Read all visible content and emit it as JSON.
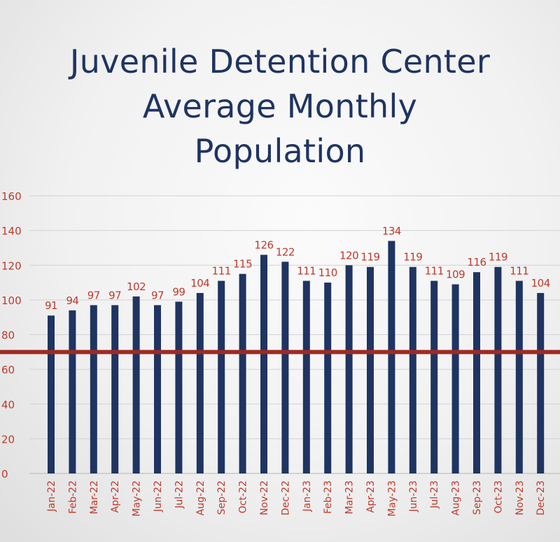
{
  "chart_data": {
    "type": "bar",
    "title_lines": [
      "Juvenile Detention Center",
      "Average Monthly",
      "Population"
    ],
    "categories": [
      "Jan-22",
      "Feb-22",
      "Mar-22",
      "Apr-22",
      "May-22",
      "Jun-22",
      "Jul-22",
      "Aug-22",
      "Sep-22",
      "Oct-22",
      "Nov-22",
      "Dec-22",
      "Jan-23",
      "Feb-23",
      "Mar-23",
      "Apr-23",
      "May-23",
      "Jun-23",
      "Jul-23",
      "Aug-23",
      "Sep-23",
      "Oct-23",
      "Nov-23",
      "Dec-23"
    ],
    "values": [
      91,
      94,
      97,
      97,
      102,
      97,
      99,
      104,
      111,
      115,
      126,
      122,
      111,
      110,
      120,
      119,
      134,
      119,
      111,
      109,
      116,
      119,
      111,
      104
    ],
    "ylim": [
      0,
      160
    ],
    "yticks": [
      "0",
      "20",
      "40",
      "60",
      "80",
      "100",
      "120",
      "140",
      "160"
    ],
    "reference_line": 70,
    "grid": true,
    "colors": {
      "bar": "#1f3461",
      "labels": "#c0392b",
      "reference_line": "#9e2a24",
      "grid": "#d2d2d8"
    }
  }
}
